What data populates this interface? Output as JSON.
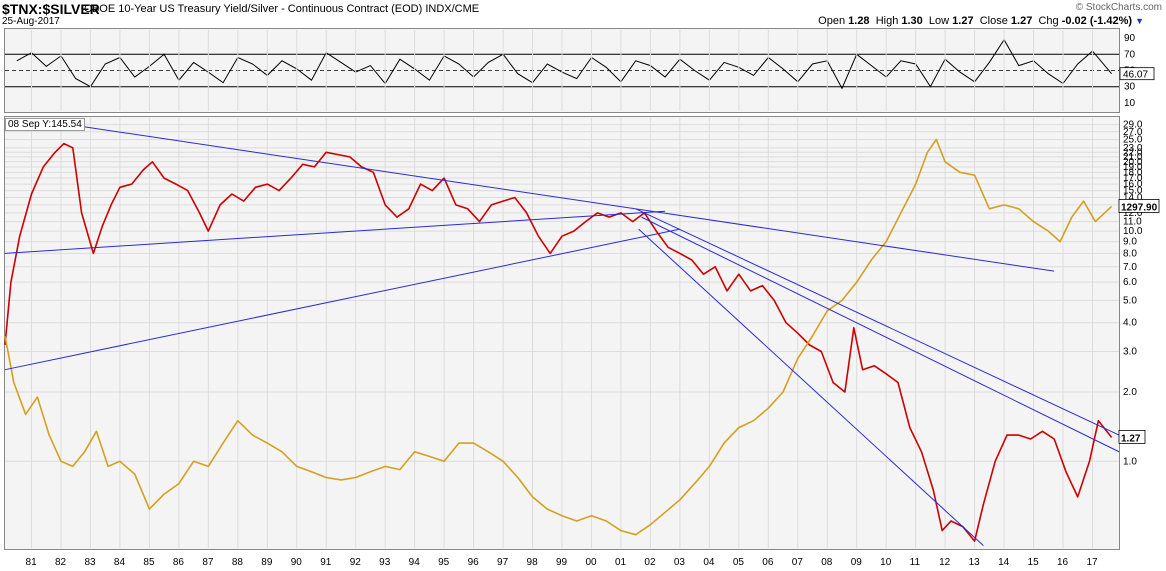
{
  "header": {
    "symbol": "$TNX:$SILVER",
    "description": "CBOE 10-Year US Treasury Yield/Silver - Continuous Contract (EOD)  INDX/CME",
    "date": "25-Aug-2017",
    "brand": "© StockCharts.com",
    "open_label": "Open",
    "open": "1.28",
    "high_label": "High",
    "high": "1.30",
    "low_label": "Low",
    "low": "1.27",
    "close_label": "Close",
    "close": "1.27",
    "chg_label": "Chg",
    "chg": "-0.02 (-1.42%)"
  },
  "annotation": "08 Sep Y:145.54",
  "colors": {
    "ratio": "#cc0000",
    "gold": "#d4a020",
    "trend": "#2a2ad6",
    "rsi": "#000000"
  },
  "chart_data": [
    {
      "type": "line",
      "panel": "rsi",
      "y_ticks": [
        90,
        70,
        50,
        30,
        10
      ],
      "ylim": [
        0,
        100
      ],
      "reference_lines": [
        70,
        50,
        30
      ],
      "last_label": "46.07",
      "x": [
        1980.5,
        1981,
        1981.5,
        1982,
        1982.5,
        1983,
        1983.5,
        1984,
        1984.5,
        1985,
        1985.5,
        1986,
        1986.5,
        1987,
        1987.5,
        1988,
        1988.5,
        1989,
        1989.5,
        1990,
        1990.5,
        1991,
        1991.5,
        1992,
        1992.5,
        1993,
        1993.5,
        1994,
        1994.5,
        1995,
        1995.5,
        1996,
        1996.5,
        1997,
        1997.5,
        1998,
        1998.5,
        1999,
        1999.5,
        2000,
        2000.5,
        2001,
        2001.5,
        2002,
        2002.5,
        2003,
        2003.5,
        2004,
        2004.5,
        2005,
        2005.5,
        2006,
        2006.5,
        2007,
        2007.5,
        2008,
        2008.5,
        2009,
        2009.5,
        2010,
        2010.5,
        2011,
        2011.5,
        2012,
        2012.5,
        2013,
        2013.5,
        2014,
        2014.5,
        2015,
        2015.5,
        2016,
        2016.5,
        2017,
        2017.65
      ],
      "values": [
        62,
        72,
        55,
        68,
        40,
        30,
        58,
        66,
        42,
        55,
        70,
        38,
        60,
        48,
        35,
        66,
        58,
        44,
        62,
        52,
        38,
        72,
        60,
        48,
        56,
        34,
        64,
        52,
        38,
        68,
        58,
        42,
        60,
        70,
        46,
        35,
        58,
        48,
        40,
        66,
        54,
        36,
        62,
        56,
        42,
        64,
        50,
        38,
        60,
        54,
        44,
        66,
        52,
        36,
        58,
        62,
        28,
        70,
        56,
        42,
        62,
        58,
        30,
        64,
        48,
        36,
        60,
        88,
        56,
        62,
        46,
        34,
        58,
        74,
        46
      ]
    },
    {
      "type": "line",
      "panel": "main",
      "scale": "log",
      "y_ticks": [
        29.0,
        27.0,
        25.0,
        23.0,
        22.0,
        21.0,
        20.0,
        19.0,
        18.0,
        17.0,
        16.0,
        15.0,
        14.0,
        13.0,
        12.0,
        11.0,
        10.0,
        9.0,
        8.0,
        7.0,
        6.0,
        5.0,
        4.0,
        3.0,
        2.0,
        1.0
      ],
      "ylim": [
        0.42,
        31
      ],
      "xlim": [
        1980.1,
        2017.9
      ],
      "x_ticks": [
        "81",
        "82",
        "83",
        "84",
        "85",
        "86",
        "87",
        "88",
        "89",
        "90",
        "91",
        "92",
        "93",
        "94",
        "95",
        "96",
        "97",
        "98",
        "99",
        "00",
        "01",
        "02",
        "03",
        "04",
        "05",
        "06",
        "07",
        "08",
        "09",
        "10",
        "11",
        "12",
        "13",
        "14",
        "15",
        "16",
        "17"
      ],
      "series": [
        {
          "color": "#cc0000",
          "last_label": "1.27",
          "x": [
            1980.1,
            1980.3,
            1980.6,
            1981.0,
            1981.4,
            1981.8,
            1982.1,
            1982.4,
            1982.7,
            1983.1,
            1983.4,
            1983.7,
            1984.0,
            1984.4,
            1984.8,
            1985.1,
            1985.5,
            1985.9,
            1986.3,
            1986.7,
            1987.0,
            1987.4,
            1987.8,
            1988.2,
            1988.6,
            1989.0,
            1989.4,
            1989.8,
            1990.2,
            1990.6,
            1991.0,
            1991.4,
            1991.8,
            1992.2,
            1992.6,
            1993.0,
            1993.4,
            1993.8,
            1994.2,
            1994.6,
            1995.0,
            1995.4,
            1995.8,
            1996.2,
            1996.6,
            1997.0,
            1997.4,
            1997.8,
            1998.2,
            1998.6,
            1999.0,
            1999.4,
            1999.8,
            2000.2,
            2000.6,
            2001.0,
            2001.4,
            2001.8,
            2002.2,
            2002.6,
            2003.0,
            2003.4,
            2003.8,
            2004.2,
            2004.6,
            2005.0,
            2005.4,
            2005.8,
            2006.2,
            2006.6,
            2007.0,
            2007.4,
            2007.8,
            2008.2,
            2008.6,
            2008.9,
            2009.2,
            2009.6,
            2010.0,
            2010.4,
            2010.8,
            2011.2,
            2011.6,
            2011.9,
            2012.2,
            2012.6,
            2013.0,
            2013.3,
            2013.7,
            2014.1,
            2014.5,
            2014.9,
            2015.3,
            2015.7,
            2016.1,
            2016.5,
            2016.9,
            2017.2,
            2017.65
          ],
          "values": [
            3.2,
            6.0,
            9.5,
            14.5,
            19.0,
            22.0,
            24.0,
            23.0,
            12.0,
            8.0,
            10.5,
            13.0,
            15.5,
            16.0,
            18.5,
            20.0,
            17.0,
            16.0,
            15.0,
            12.0,
            10.0,
            13.0,
            14.5,
            13.5,
            15.5,
            16.0,
            15.0,
            17.0,
            19.5,
            19.0,
            22.0,
            21.5,
            21.0,
            19.0,
            18.0,
            13.0,
            11.5,
            12.5,
            16.0,
            15.0,
            17.0,
            13.0,
            12.5,
            11.0,
            13.0,
            13.5,
            14.0,
            12.0,
            9.5,
            8.0,
            9.5,
            10.0,
            11.0,
            12.0,
            11.5,
            12.0,
            11.0,
            12.0,
            10.0,
            8.5,
            8.0,
            7.5,
            6.5,
            7.0,
            5.5,
            6.5,
            5.5,
            5.8,
            5.0,
            4.0,
            3.6,
            3.2,
            3.0,
            2.2,
            2.0,
            3.8,
            2.5,
            2.6,
            2.4,
            2.2,
            1.4,
            1.1,
            0.75,
            0.5,
            0.55,
            0.52,
            0.45,
            0.65,
            1.0,
            1.3,
            1.3,
            1.25,
            1.35,
            1.25,
            0.9,
            0.7,
            1.0,
            1.5,
            1.27
          ]
        },
        {
          "color": "#d4a020",
          "last_label": "1297.90",
          "x": [
            1980.1,
            1980.4,
            1980.8,
            1981.2,
            1981.6,
            1982.0,
            1982.4,
            1982.8,
            1983.2,
            1983.6,
            1984.0,
            1984.5,
            1985.0,
            1985.5,
            1986.0,
            1986.5,
            1987.0,
            1987.5,
            1988.0,
            1988.5,
            1989.0,
            1989.5,
            1990.0,
            1990.5,
            1991.0,
            1991.5,
            1992.0,
            1992.5,
            1993.0,
            1993.5,
            1994.0,
            1994.5,
            1995.0,
            1995.5,
            1996.0,
            1996.5,
            1997.0,
            1997.5,
            1998.0,
            1998.5,
            1999.0,
            1999.5,
            2000.0,
            2000.5,
            2001.0,
            2001.5,
            2002.0,
            2002.5,
            2003.0,
            2003.5,
            2004.0,
            2004.5,
            2005.0,
            2005.5,
            2006.0,
            2006.5,
            2007.0,
            2007.5,
            2008.0,
            2008.5,
            2009.0,
            2009.5,
            2010.0,
            2010.5,
            2011.0,
            2011.4,
            2011.7,
            2012.0,
            2012.5,
            2013.0,
            2013.5,
            2014.0,
            2014.5,
            2015.0,
            2015.5,
            2015.9,
            2016.3,
            2016.7,
            2017.1,
            2017.65
          ],
          "values": [
            3.5,
            2.2,
            1.6,
            1.9,
            1.3,
            1.0,
            0.95,
            1.1,
            1.35,
            0.95,
            1.0,
            0.88,
            0.62,
            0.72,
            0.8,
            1.0,
            0.95,
            1.2,
            1.5,
            1.3,
            1.2,
            1.1,
            0.95,
            0.9,
            0.85,
            0.83,
            0.85,
            0.9,
            0.95,
            0.92,
            1.1,
            1.05,
            1.0,
            1.2,
            1.2,
            1.1,
            1.0,
            0.85,
            0.7,
            0.62,
            0.58,
            0.55,
            0.58,
            0.55,
            0.5,
            0.48,
            0.53,
            0.6,
            0.68,
            0.8,
            0.95,
            1.2,
            1.4,
            1.5,
            1.7,
            2.0,
            2.8,
            3.5,
            4.5,
            5.0,
            6.0,
            7.5,
            9.0,
            12.0,
            16.0,
            22.0,
            25.0,
            20.0,
            18.0,
            17.5,
            12.5,
            13.0,
            12.5,
            11.0,
            10.0,
            9.0,
            11.5,
            13.5,
            11.0,
            12.8
          ]
        }
      ],
      "trendlines": [
        {
          "x": [
            1980.1,
            2002.5
          ],
          "values": [
            8.0,
            12.2
          ]
        },
        {
          "x": [
            1980.1,
            2003.0
          ],
          "values": [
            2.5,
            10.2
          ]
        },
        {
          "x": [
            1982.3,
            2015.7
          ],
          "values": [
            29.0,
            6.7
          ]
        },
        {
          "x": [
            2001.5,
            2017.9
          ],
          "values": [
            12.5,
            1.3
          ]
        },
        {
          "x": [
            2001.7,
            2017.9
          ],
          "values": [
            11.5,
            1.1
          ]
        },
        {
          "x": [
            2001.6,
            2013.3
          ],
          "values": [
            10.2,
            0.43
          ]
        }
      ]
    }
  ]
}
